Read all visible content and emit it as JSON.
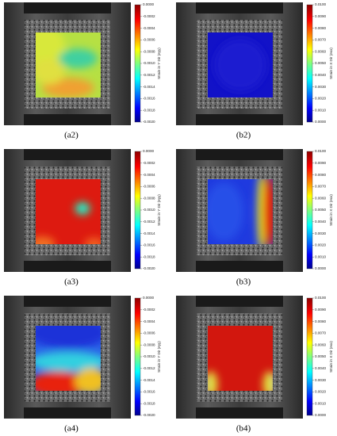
{
  "panels": [
    {
      "label": "(a2)",
      "colorbar": {
        "label": "Strain in Y Dir (eyy)",
        "ticks": [
          "0.0000",
          "-0.0002",
          "-0.0004",
          "-0.0006",
          "-0.0008",
          "-0.0010",
          "-0.0012",
          "-0.0014",
          "-0.0016",
          "-0.0018",
          "-0.0020"
        ]
      }
    },
    {
      "label": "(b2)",
      "colorbar": {
        "label": "Strain in X Dir (exx)",
        "ticks": [
          "0.0100",
          "0.0090",
          "0.0080",
          "0.0070",
          "0.0060",
          "0.0050",
          "0.0040",
          "0.0030",
          "0.0020",
          "0.0010",
          "0.0000"
        ]
      }
    },
    {
      "label": "(a3)",
      "colorbar": {
        "label": "Strain in Y Dir (eyy)",
        "ticks": [
          "0.0000",
          "-0.0002",
          "-0.0004",
          "-0.0006",
          "-0.0008",
          "-0.0010",
          "-0.0012",
          "-0.0014",
          "-0.0016",
          "-0.0018",
          "-0.0020"
        ]
      }
    },
    {
      "label": "(b3)",
      "colorbar": {
        "label": "Strain in X Dir (exx)",
        "ticks": [
          "0.0100",
          "0.0090",
          "0.0080",
          "0.0070",
          "0.0060",
          "0.0050",
          "0.0040",
          "0.0030",
          "0.0020",
          "0.0010",
          "0.0000"
        ]
      }
    },
    {
      "label": "(a4)",
      "colorbar": {
        "label": "Strain in Y Dir (eyy)",
        "ticks": [
          "0.0000",
          "-0.0002",
          "-0.0004",
          "-0.0006",
          "-0.0008",
          "-0.0010",
          "-0.0012",
          "-0.0014",
          "-0.0016",
          "-0.0018",
          "-0.0020"
        ]
      }
    },
    {
      "label": "(b4)",
      "colorbar": {
        "label": "Strain in X Dir (exx)",
        "ticks": [
          "0.0100",
          "0.0090",
          "0.0080",
          "0.0070",
          "0.0060",
          "0.0050",
          "0.0040",
          "0.0030",
          "0.0020",
          "0.0010",
          "0.0000"
        ]
      }
    }
  ]
}
